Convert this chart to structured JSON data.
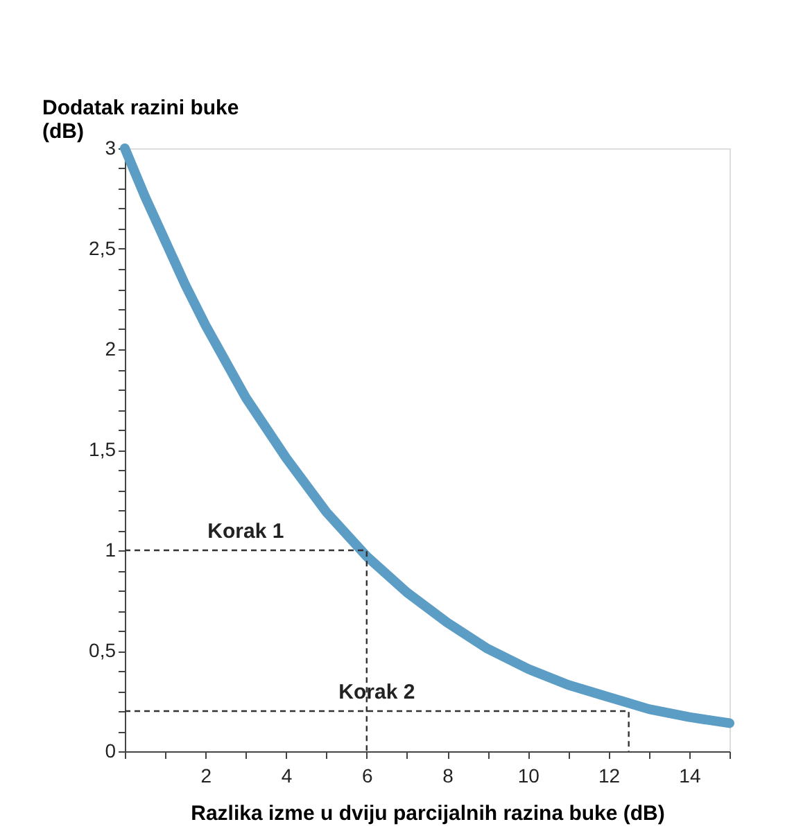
{
  "chart_data": {
    "type": "line",
    "xlabel": "Razlika izme u dviju parcijalnih razina buke  (dB)",
    "ylabel": "Dodatak razini buke\n(dB)",
    "xlim": [
      0,
      15
    ],
    "ylim": [
      0,
      3
    ],
    "xticks": [
      {
        "value": 0,
        "label": null
      },
      {
        "value": 1,
        "label": null
      },
      2,
      {
        "value": 3,
        "label": null
      },
      4,
      {
        "value": 5,
        "label": null
      },
      6,
      {
        "value": 7,
        "label": null
      },
      8,
      {
        "value": 9,
        "label": null
      },
      10,
      {
        "value": 11,
        "label": null
      },
      12,
      {
        "value": 13,
        "label": null
      },
      14,
      {
        "value": 15,
        "label": null
      }
    ],
    "yticks": [
      0,
      {
        "value": 0.1,
        "label": null
      },
      {
        "value": 0.2,
        "label": null
      },
      {
        "value": 0.3,
        "label": null
      },
      {
        "value": 0.4,
        "label": null
      },
      {
        "value": 0.5,
        "label": "0,5"
      },
      {
        "value": 0.6,
        "label": null
      },
      {
        "value": 0.7,
        "label": null
      },
      {
        "value": 0.8,
        "label": null
      },
      {
        "value": 0.9,
        "label": null
      },
      1,
      {
        "value": 1.1,
        "label": null
      },
      {
        "value": 1.2,
        "label": null
      },
      {
        "value": 1.3,
        "label": null
      },
      {
        "value": 1.4,
        "label": null
      },
      {
        "value": 1.5,
        "label": "1,5"
      },
      {
        "value": 1.6,
        "label": null
      },
      {
        "value": 1.7,
        "label": null
      },
      {
        "value": 1.8,
        "label": null
      },
      {
        "value": 1.9,
        "label": null
      },
      2,
      {
        "value": 2.1,
        "label": null
      },
      {
        "value": 2.2,
        "label": null
      },
      {
        "value": 2.3,
        "label": null
      },
      {
        "value": 2.4,
        "label": null
      },
      {
        "value": 2.5,
        "label": "2,5"
      },
      {
        "value": 2.6,
        "label": null
      },
      {
        "value": 2.7,
        "label": null
      },
      {
        "value": 2.8,
        "label": null
      },
      {
        "value": 2.9,
        "label": null
      },
      3
    ],
    "grid": false,
    "series": [
      {
        "color": "#5b9dc4",
        "x": [
          0,
          0.5,
          1,
          1.5,
          2,
          3,
          4,
          5,
          6,
          7,
          8,
          9,
          10,
          11,
          12,
          13,
          14,
          15
        ],
        "values": [
          3.0,
          2.76,
          2.54,
          2.32,
          2.12,
          1.76,
          1.46,
          1.19,
          0.97,
          0.79,
          0.64,
          0.51,
          0.41,
          0.33,
          0.27,
          0.21,
          0.17,
          0.14
        ]
      },
      {
        "name": "Korak 1",
        "type": "line",
        "line_style": "dashed",
        "color": "#333333",
        "x": [
          0,
          6,
          6
        ],
        "values": [
          1,
          1,
          0
        ]
      },
      {
        "name": "Korak 2",
        "type": "line",
        "line_style": "dashed",
        "color": "#333333",
        "x": [
          0,
          12.5,
          12.5
        ],
        "values": [
          0.2,
          0.2,
          0
        ]
      }
    ]
  }
}
